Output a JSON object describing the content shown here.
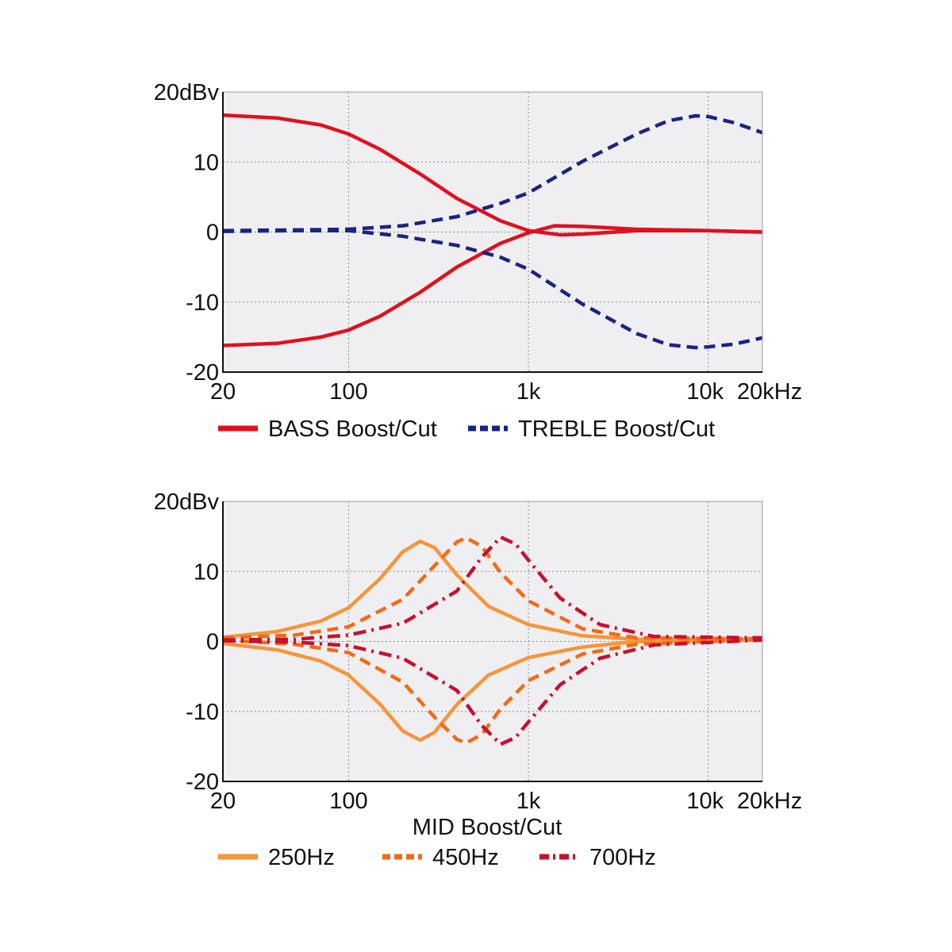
{
  "chart_data": [
    {
      "type": "line",
      "xscale": "log",
      "xlim": [
        20,
        20000
      ],
      "ylim": [
        -20,
        20
      ],
      "grid": true,
      "legend_position": "bottom",
      "y_ticks": [
        {
          "value": 20,
          "label": "20dBv"
        },
        {
          "value": 10,
          "label": "10"
        },
        {
          "value": 0,
          "label": "0"
        },
        {
          "value": -10,
          "label": "-10"
        },
        {
          "value": -20,
          "label": "-20"
        }
      ],
      "x_ticks": [
        {
          "value": 20,
          "label": "20"
        },
        {
          "value": 100,
          "label": "100"
        },
        {
          "value": 1000,
          "label": "1k"
        },
        {
          "value": 10000,
          "label": "10k"
        },
        {
          "value": 20000,
          "label": "20kHz"
        }
      ],
      "xlabel": "",
      "legend": [
        {
          "label": "BASS Boost/Cut",
          "color": "#e0101e",
          "dash": "solid"
        },
        {
          "label": "TREBLE Boost/Cut",
          "color": "#1b2480",
          "dash": "dashed"
        }
      ],
      "series": [
        {
          "name": "BASS Boost/Cut",
          "color": "#e0101e",
          "dash": "solid",
          "points": [
            [
              20,
              16.7
            ],
            [
              40,
              16.3
            ],
            [
              70,
              15.3
            ],
            [
              100,
              14.0
            ],
            [
              150,
              11.8
            ],
            [
              250,
              8.3
            ],
            [
              400,
              4.8
            ],
            [
              700,
              1.6
            ],
            [
              1000,
              0.2
            ],
            [
              1500,
              -0.4
            ],
            [
              2000,
              -0.3
            ],
            [
              4000,
              0.2
            ],
            [
              10000,
              0.2
            ],
            [
              20000,
              0.0
            ]
          ]
        },
        {
          "name": "BASS Boost/Cut",
          "color": "#e0101e",
          "dash": "solid",
          "points": [
            [
              20,
              -16.2
            ],
            [
              40,
              -15.9
            ],
            [
              70,
              -15.0
            ],
            [
              100,
              -14.0
            ],
            [
              150,
              -12.0
            ],
            [
              250,
              -8.6
            ],
            [
              400,
              -5.0
            ],
            [
              700,
              -1.6
            ],
            [
              1000,
              -0.1
            ],
            [
              1400,
              0.9
            ],
            [
              2000,
              0.8
            ],
            [
              4000,
              0.4
            ],
            [
              10000,
              0.2
            ],
            [
              20000,
              0.0
            ]
          ]
        },
        {
          "name": "TREBLE Boost/Cut",
          "color": "#1b2480",
          "dash": "dashed",
          "points": [
            [
              20,
              0.2
            ],
            [
              50,
              0.3
            ],
            [
              100,
              0.4
            ],
            [
              200,
              0.9
            ],
            [
              400,
              2.2
            ],
            [
              700,
              4.1
            ],
            [
              1000,
              5.6
            ],
            [
              2000,
              10.1
            ],
            [
              4000,
              14.0
            ],
            [
              6000,
              15.9
            ],
            [
              8500,
              16.6
            ],
            [
              10000,
              16.5
            ],
            [
              14000,
              15.6
            ],
            [
              20000,
              14.2
            ]
          ]
        },
        {
          "name": "TREBLE Boost/Cut",
          "color": "#1b2480",
          "dash": "dashed",
          "points": [
            [
              20,
              0.1
            ],
            [
              50,
              0.2
            ],
            [
              100,
              0.2
            ],
            [
              200,
              -0.6
            ],
            [
              400,
              -1.9
            ],
            [
              700,
              -3.6
            ],
            [
              1000,
              -5.3
            ],
            [
              2000,
              -10.3
            ],
            [
              4000,
              -14.5
            ],
            [
              6000,
              -16.1
            ],
            [
              8500,
              -16.5
            ],
            [
              10000,
              -16.4
            ],
            [
              14000,
              -16.0
            ],
            [
              20000,
              -15.1
            ]
          ]
        }
      ]
    },
    {
      "type": "line",
      "xscale": "log",
      "xlim": [
        20,
        20000
      ],
      "ylim": [
        -20,
        20
      ],
      "grid": true,
      "legend_position": "bottom",
      "y_ticks": [
        {
          "value": 20,
          "label": "20dBv"
        },
        {
          "value": 10,
          "label": "10"
        },
        {
          "value": 0,
          "label": "0"
        },
        {
          "value": -10,
          "label": "-10"
        },
        {
          "value": -20,
          "label": "-20"
        }
      ],
      "x_ticks": [
        {
          "value": 20,
          "label": "20"
        },
        {
          "value": 100,
          "label": "100"
        },
        {
          "value": 1000,
          "label": "1k"
        },
        {
          "value": 10000,
          "label": "10k"
        },
        {
          "value": 20000,
          "label": "20kHz"
        }
      ],
      "xlabel": "MID Boost/Cut",
      "legend": [
        {
          "label": "250Hz",
          "color": "#f7953a",
          "dash": "solid"
        },
        {
          "label": "450Hz",
          "color": "#f26a18",
          "dash": "dashed"
        },
        {
          "label": "700Hz",
          "color": "#c8102e",
          "dash": "dashdot"
        }
      ],
      "series": [
        {
          "name": "250Hz",
          "color": "#f7953a",
          "dash": "solid",
          "points": [
            [
              20,
              0.6
            ],
            [
              40,
              1.4
            ],
            [
              70,
              2.9
            ],
            [
              100,
              4.8
            ],
            [
              150,
              9.0
            ],
            [
              200,
              12.8
            ],
            [
              250,
              14.3
            ],
            [
              300,
              13.4
            ],
            [
              400,
              9.5
            ],
            [
              600,
              5.0
            ],
            [
              1000,
              2.4
            ],
            [
              2000,
              0.8
            ],
            [
              4000,
              0.3
            ],
            [
              20000,
              0.3
            ]
          ]
        },
        {
          "name": "250Hz",
          "color": "#f7953a",
          "dash": "solid",
          "points": [
            [
              20,
              -0.3
            ],
            [
              40,
              -1.2
            ],
            [
              70,
              -2.8
            ],
            [
              100,
              -4.8
            ],
            [
              150,
              -9.0
            ],
            [
              200,
              -12.8
            ],
            [
              250,
              -14.1
            ],
            [
              300,
              -13.0
            ],
            [
              400,
              -9.0
            ],
            [
              600,
              -4.8
            ],
            [
              1000,
              -2.3
            ],
            [
              2000,
              -0.8
            ],
            [
              4000,
              0.0
            ],
            [
              20000,
              0.2
            ]
          ]
        },
        {
          "name": "450Hz",
          "color": "#f26a18",
          "dash": "dashed",
          "points": [
            [
              20,
              0.5
            ],
            [
              50,
              0.9
            ],
            [
              100,
              2.1
            ],
            [
              200,
              6.0
            ],
            [
              300,
              10.8
            ],
            [
              400,
              14.2
            ],
            [
              450,
              14.8
            ],
            [
              550,
              13.6
            ],
            [
              700,
              9.8
            ],
            [
              1000,
              5.8
            ],
            [
              2000,
              1.8
            ],
            [
              4000,
              0.5
            ],
            [
              20000,
              0.4
            ]
          ]
        },
        {
          "name": "450Hz",
          "color": "#f26a18",
          "dash": "dashed",
          "points": [
            [
              20,
              0.2
            ],
            [
              50,
              -0.4
            ],
            [
              100,
              -1.6
            ],
            [
              200,
              -5.8
            ],
            [
              300,
              -10.8
            ],
            [
              400,
              -14.0
            ],
            [
              450,
              -14.5
            ],
            [
              550,
              -13.3
            ],
            [
              700,
              -9.6
            ],
            [
              1000,
              -5.6
            ],
            [
              2000,
              -1.8
            ],
            [
              4000,
              -0.4
            ],
            [
              20000,
              0.3
            ]
          ]
        },
        {
          "name": "700Hz",
          "color": "#c8102e",
          "dash": "dashdot",
          "points": [
            [
              20,
              0.2
            ],
            [
              50,
              0.3
            ],
            [
              100,
              0.9
            ],
            [
              200,
              2.6
            ],
            [
              400,
              7.2
            ],
            [
              550,
              12.0
            ],
            [
              700,
              14.9
            ],
            [
              850,
              13.9
            ],
            [
              1000,
              11.6
            ],
            [
              1500,
              6.2
            ],
            [
              2500,
              2.4
            ],
            [
              5000,
              0.7
            ],
            [
              20000,
              0.5
            ]
          ]
        },
        {
          "name": "700Hz",
          "color": "#c8102e",
          "dash": "dashdot",
          "points": [
            [
              20,
              0.1
            ],
            [
              50,
              -0.1
            ],
            [
              100,
              -0.6
            ],
            [
              200,
              -2.4
            ],
            [
              400,
              -7.0
            ],
            [
              550,
              -12.0
            ],
            [
              700,
              -14.7
            ],
            [
              850,
              -13.7
            ],
            [
              1000,
              -11.5
            ],
            [
              1500,
              -6.2
            ],
            [
              2500,
              -2.4
            ],
            [
              5000,
              -0.5
            ],
            [
              20000,
              0.2
            ]
          ]
        }
      ]
    }
  ]
}
